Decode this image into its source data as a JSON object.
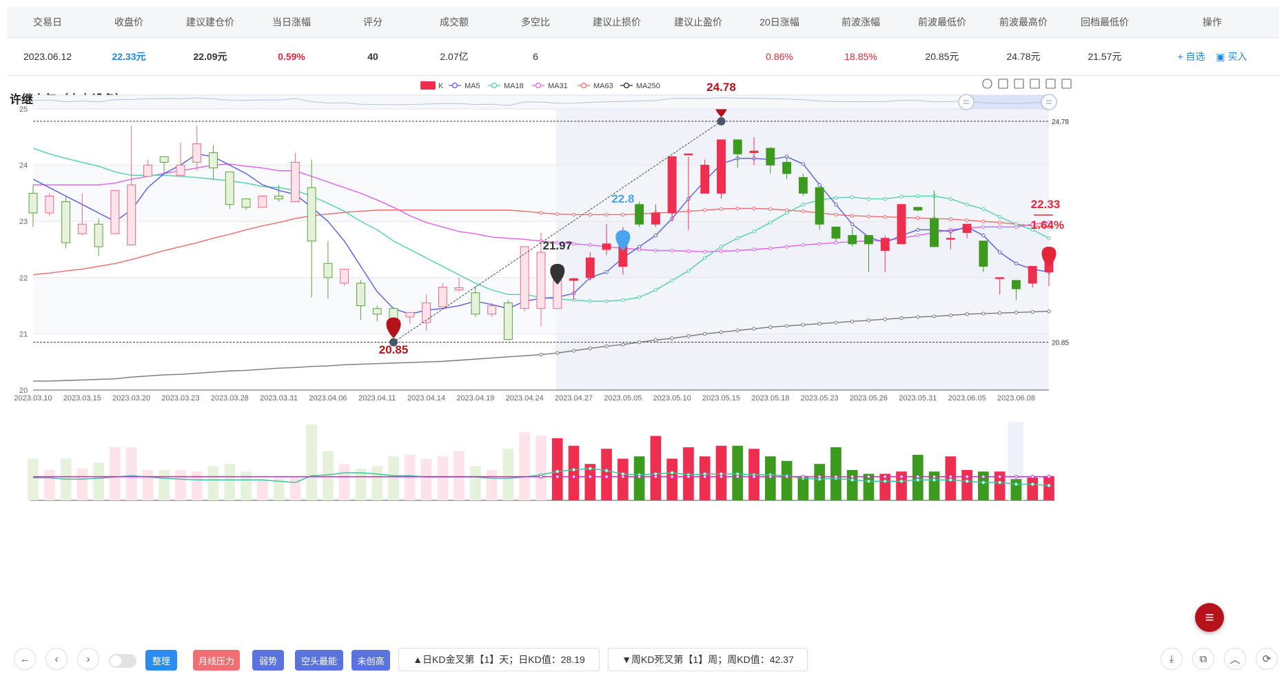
{
  "table": {
    "headers": [
      "交易日",
      "收盘价",
      "建议建仓价",
      "当日涨幅",
      "评分",
      "成交额",
      "多空比",
      "建议止损价",
      "建议止盈价",
      "20日涨幅",
      "前波涨幅",
      "前波最低价",
      "前波最高价",
      "回档最低价",
      "操作"
    ],
    "row": {
      "date": "2023.06.12",
      "close": "22.33元",
      "entry": "22.09元",
      "change": "0.59%",
      "score": "40",
      "amount": "2.07亿",
      "ratio": "6",
      "stop_loss": "",
      "take_profit": "",
      "chg20": "0.86%",
      "wave_chg": "18.85%",
      "wave_low": "20.85元",
      "wave_high": "24.78元",
      "pullback_low": "21.57元",
      "action_watch": "+ 自选",
      "action_buy": "买入"
    }
  },
  "stock_title": "许继电气（电力设备）",
  "legend": [
    "K",
    "MA5",
    "MA18",
    "MA31",
    "MA63",
    "MA250"
  ],
  "colors": {
    "up": "#ef2f4f",
    "down": "#3c9a1f",
    "ma5": "#4b4bdc",
    "ma18": "#35c6a0",
    "ma31": "#e05ae5",
    "ma63": "#e04c4c",
    "ma250": "#222222"
  },
  "chart_data": {
    "type": "candlestick",
    "x": [
      "2023.03.10",
      "2023.03.13",
      "2023.03.14",
      "2023.03.15",
      "2023.03.16",
      "2023.03.17",
      "2023.03.20",
      "2023.03.21",
      "2023.03.22",
      "2023.03.23",
      "2023.03.24",
      "2023.03.27",
      "2023.03.28",
      "2023.03.29",
      "2023.03.30",
      "2023.03.31",
      "2023.04.03",
      "2023.04.04",
      "2023.04.06",
      "2023.04.07",
      "2023.04.10",
      "2023.04.11",
      "2023.04.12",
      "2023.04.13",
      "2023.04.14",
      "2023.04.17",
      "2023.04.18",
      "2023.04.19",
      "2023.04.20",
      "2023.04.21",
      "2023.04.24",
      "2023.04.25",
      "2023.04.26",
      "2023.04.27",
      "2023.04.28",
      "2023.05.04",
      "2023.05.05",
      "2023.05.08",
      "2023.05.09",
      "2023.05.10",
      "2023.05.11",
      "2023.05.12",
      "2023.05.15",
      "2023.05.16",
      "2023.05.17",
      "2023.05.18",
      "2023.05.19",
      "2023.05.22",
      "2023.05.23",
      "2023.05.24",
      "2023.05.25",
      "2023.05.26",
      "2023.05.29",
      "2023.05.30",
      "2023.05.31",
      "2023.06.01",
      "2023.06.02",
      "2023.06.05",
      "2023.06.06",
      "2023.06.07",
      "2023.06.08",
      "2023.06.09",
      "2023.06.12"
    ],
    "ohlc": [
      [
        23.5,
        23.15,
        23.65,
        22.9
      ],
      [
        23.15,
        23.45,
        23.5,
        23.1
      ],
      [
        23.35,
        22.62,
        23.45,
        22.52
      ],
      [
        22.78,
        22.95,
        23.5,
        22.75
      ],
      [
        22.95,
        22.55,
        23.05,
        22.38
      ],
      [
        22.78,
        23.55,
        23.55,
        22.78
      ],
      [
        22.58,
        23.65,
        24.7,
        22.58
      ],
      [
        23.8,
        24.0,
        24.1,
        23.8
      ],
      [
        24.15,
        24.05,
        24.15,
        23.85
      ],
      [
        23.82,
        24.0,
        24.4,
        23.82
      ],
      [
        24.05,
        24.38,
        24.7,
        23.9
      ],
      [
        24.22,
        23.95,
        24.35,
        23.75
      ],
      [
        23.88,
        23.3,
        23.88,
        23.22
      ],
      [
        23.4,
        23.25,
        23.4,
        23.2
      ],
      [
        23.25,
        23.45,
        23.45,
        23.25
      ],
      [
        23.45,
        23.4,
        23.65,
        23.35
      ],
      [
        23.35,
        24.05,
        24.22,
        23.35
      ],
      [
        23.6,
        22.65,
        24.1,
        21.65
      ],
      [
        22.25,
        22.0,
        22.65,
        21.62
      ],
      [
        21.9,
        22.15,
        22.15,
        21.85
      ],
      [
        21.9,
        21.5,
        21.95,
        21.25
      ],
      [
        21.45,
        21.35,
        21.5,
        21.22
      ],
      [
        21.45,
        21.25,
        21.45,
        21.05
      ],
      [
        21.3,
        21.38,
        21.38,
        21.18
      ],
      [
        21.2,
        21.55,
        21.7,
        21.05
      ],
      [
        21.48,
        21.83,
        21.9,
        21.48
      ],
      [
        21.78,
        21.82,
        22.0,
        21.75
      ],
      [
        21.73,
        21.35,
        21.85,
        21.3
      ],
      [
        21.35,
        21.5,
        21.55,
        21.3
      ],
      [
        21.55,
        20.9,
        21.6,
        20.88
      ],
      [
        21.45,
        22.55,
        22.55,
        21.4
      ],
      [
        21.45,
        22.45,
        22.8,
        21.13
      ],
      [
        21.45,
        21.95,
        21.95,
        21.45
      ],
      [
        21.95,
        21.98,
        22.0,
        21.6
      ],
      [
        22.0,
        22.35,
        22.45,
        21.95
      ],
      [
        22.5,
        22.6,
        22.95,
        22.4
      ],
      [
        22.2,
        22.75,
        22.9,
        22.05
      ],
      [
        23.3,
        22.95,
        23.35,
        22.9
      ],
      [
        22.95,
        23.15,
        23.3,
        22.9
      ],
      [
        23.15,
        24.15,
        24.15,
        23.0
      ],
      [
        24.2,
        24.2,
        24.15,
        22.85
      ],
      [
        23.5,
        24.0,
        24.1,
        23.5
      ],
      [
        23.5,
        24.45,
        24.45,
        23.4
      ],
      [
        24.45,
        24.2,
        24.45,
        23.95
      ],
      [
        24.22,
        24.25,
        24.5,
        24.0
      ],
      [
        24.3,
        24.0,
        24.32,
        23.85
      ],
      [
        24.05,
        23.85,
        24.15,
        23.75
      ],
      [
        23.78,
        23.5,
        23.85,
        23.45
      ],
      [
        23.6,
        22.95,
        23.6,
        22.85
      ],
      [
        22.9,
        22.7,
        22.9,
        22.65
      ],
      [
        22.75,
        22.6,
        22.9,
        22.55
      ],
      [
        22.75,
        22.6,
        22.75,
        22.1
      ],
      [
        22.48,
        22.7,
        22.75,
        22.1
      ],
      [
        22.6,
        23.3,
        23.3,
        22.6
      ],
      [
        23.25,
        23.2,
        23.2,
        23.18
      ],
      [
        23.05,
        22.55,
        23.55,
        22.55
      ],
      [
        22.7,
        22.7,
        22.85,
        22.5
      ],
      [
        22.8,
        22.95,
        22.95,
        22.7
      ],
      [
        22.65,
        22.2,
        22.65,
        22.1
      ],
      [
        22.0,
        22.0,
        22.0,
        21.7
      ],
      [
        21.95,
        21.8,
        21.95,
        21.6
      ],
      [
        21.9,
        22.2,
        22.2,
        21.82
      ],
      [
        22.1,
        22.33,
        22.35,
        21.85
      ]
    ],
    "ma5": [
      23.75,
      23.6,
      23.45,
      23.3,
      23.15,
      23.0,
      23.2,
      23.6,
      23.85,
      24.0,
      24.2,
      24.15,
      24.0,
      23.85,
      23.65,
      23.55,
      23.48,
      23.25,
      23.0,
      22.65,
      22.2,
      21.75,
      21.45,
      21.35,
      21.42,
      21.45,
      21.5,
      21.58,
      21.52,
      21.45,
      21.58,
      21.63,
      21.65,
      21.72,
      22.0,
      22.1,
      22.35,
      22.55,
      22.75,
      23.05,
      23.4,
      23.72,
      24.02,
      24.12,
      24.12,
      24.1,
      24.15,
      24.02,
      23.65,
      23.3,
      22.95,
      22.72,
      22.62,
      22.75,
      22.85,
      22.85,
      22.82,
      22.9,
      22.75,
      22.45,
      22.25,
      22.15,
      22.1
    ],
    "ma18": [
      24.3,
      24.2,
      24.12,
      24.05,
      23.98,
      23.88,
      23.82,
      23.82,
      23.82,
      23.8,
      23.78,
      23.75,
      23.72,
      23.68,
      23.62,
      23.6,
      23.55,
      23.45,
      23.32,
      23.18,
      23.0,
      22.85,
      22.65,
      22.5,
      22.35,
      22.2,
      22.05,
      21.9,
      21.78,
      21.7,
      21.7,
      21.65,
      21.62,
      21.6,
      21.58,
      21.58,
      21.6,
      21.65,
      21.78,
      21.95,
      22.12,
      22.35,
      22.55,
      22.7,
      22.82,
      22.98,
      23.15,
      23.3,
      23.38,
      23.42,
      23.43,
      23.4,
      23.4,
      23.44,
      23.45,
      23.45,
      23.4,
      23.3,
      23.22,
      23.08,
      22.95,
      22.85,
      22.7
    ],
    "ma31": [
      23.65,
      23.65,
      23.65,
      23.65,
      23.65,
      23.68,
      23.75,
      23.8,
      23.85,
      23.9,
      23.95,
      24.0,
      24.02,
      23.98,
      23.95,
      23.9,
      23.9,
      23.8,
      23.7,
      23.6,
      23.5,
      23.38,
      23.25,
      23.1,
      22.98,
      22.9,
      22.82,
      22.78,
      22.72,
      22.7,
      22.68,
      22.65,
      22.62,
      22.6,
      22.58,
      22.55,
      22.52,
      22.5,
      22.48,
      22.48,
      22.47,
      22.46,
      22.47,
      22.48,
      22.5,
      22.52,
      22.55,
      22.58,
      22.6,
      22.62,
      22.64,
      22.65,
      22.66,
      22.7,
      22.75,
      22.8,
      22.85,
      22.88,
      22.9,
      22.9,
      22.9,
      22.95,
      22.98
    ],
    "ma63": [
      22.05,
      22.08,
      22.12,
      22.15,
      22.2,
      22.25,
      22.32,
      22.4,
      22.48,
      22.55,
      22.62,
      22.7,
      22.77,
      22.85,
      22.92,
      22.98,
      23.05,
      23.1,
      23.13,
      23.16,
      23.18,
      23.2,
      23.2,
      23.2,
      23.2,
      23.2,
      23.2,
      23.2,
      23.2,
      23.2,
      23.18,
      23.15,
      23.13,
      23.12,
      23.12,
      23.12,
      23.12,
      23.13,
      23.15,
      23.16,
      23.18,
      23.2,
      23.22,
      23.23,
      23.23,
      23.22,
      23.2,
      23.18,
      23.15,
      23.12,
      23.1,
      23.09,
      23.08,
      23.07,
      23.06,
      23.05,
      23.04,
      23.02,
      23.0,
      22.98,
      22.95,
      22.92,
      22.9
    ],
    "ma250": [
      20.16,
      20.16,
      20.17,
      20.18,
      20.19,
      20.2,
      20.23,
      20.25,
      20.27,
      20.28,
      20.3,
      20.32,
      20.34,
      20.35,
      20.37,
      20.39,
      20.4,
      20.42,
      20.43,
      20.45,
      20.46,
      20.47,
      20.48,
      20.49,
      20.5,
      20.51,
      20.53,
      20.55,
      20.57,
      20.59,
      20.61,
      20.63,
      20.66,
      20.7,
      20.74,
      20.78,
      20.81,
      20.85,
      20.89,
      20.92,
      20.96,
      21.0,
      21.03,
      21.06,
      21.09,
      21.12,
      21.14,
      21.16,
      21.18,
      21.2,
      21.22,
      21.24,
      21.26,
      21.28,
      21.3,
      21.31,
      21.33,
      21.35,
      21.36,
      21.37,
      21.38,
      21.39,
      21.4
    ],
    "volume": [
      0.55,
      0.4,
      0.55,
      0.42,
      0.5,
      0.7,
      0.7,
      0.4,
      0.4,
      0.4,
      0.38,
      0.45,
      0.48,
      0.38,
      0.28,
      0.3,
      0.3,
      1.0,
      0.65,
      0.48,
      0.42,
      0.45,
      0.58,
      0.6,
      0.55,
      0.58,
      0.65,
      0.45,
      0.4,
      0.68,
      0.9,
      0.85,
      0.82,
      0.72,
      0.48,
      0.68,
      0.55,
      0.58,
      0.85,
      0.55,
      0.7,
      0.58,
      0.72,
      0.72,
      0.68,
      0.58,
      0.52,
      0.32,
      0.48,
      0.7,
      0.4,
      0.35,
      0.35,
      0.38,
      0.6,
      0.38,
      0.58,
      0.4,
      0.38,
      0.38,
      0.28,
      0.3,
      0.32
    ],
    "volume_ma_cyan": [
      0.53,
      0.53,
      0.5,
      0.5,
      0.52,
      0.55,
      0.58,
      0.55,
      0.52,
      0.5,
      0.48,
      0.48,
      0.48,
      0.48,
      0.48,
      0.45,
      0.42,
      0.58,
      0.6,
      0.65,
      0.65,
      0.62,
      0.58,
      0.58,
      0.55,
      0.55,
      0.55,
      0.55,
      0.52,
      0.52,
      0.55,
      0.6,
      0.68,
      0.72,
      0.75,
      0.7,
      0.62,
      0.6,
      0.62,
      0.65,
      0.6,
      0.62,
      0.62,
      0.62,
      0.6,
      0.6,
      0.58,
      0.52,
      0.5,
      0.52,
      0.48,
      0.45,
      0.45,
      0.45,
      0.48,
      0.48,
      0.48,
      0.45,
      0.42,
      0.42,
      0.38,
      0.38,
      0.35
    ],
    "volume_ma_magenta": 0.6,
    "ylim": [
      20,
      25
    ],
    "y_ticks": [
      "20",
      "21",
      "22",
      "23",
      "24",
      "25"
    ],
    "x_ticks": [
      "2023.03.10",
      "2023.03.15",
      "2023.03.20",
      "2023.03.23",
      "2023.03.28",
      "2023.03.31",
      "2023.04.06",
      "2023.04.11",
      "2023.04.14",
      "2023.04.19",
      "2023.04.24",
      "2023.04.27",
      "2023.05.05",
      "2023.05.10",
      "2023.05.15",
      "2023.05.18",
      "2023.05.23",
      "2023.05.26",
      "2023.05.31",
      "2023.06.05",
      "2023.06.08"
    ],
    "ref_lines": [
      "24.78",
      "20.85"
    ],
    "markers": {
      "high": "24.78",
      "low": "20.85",
      "blue": "22.8",
      "black": "21.97",
      "last_price": "22.33",
      "last_pct": "1.64%"
    }
  },
  "bottom": {
    "buttons": [
      "整理",
      "月线压力",
      "弱势",
      "空头最能",
      "未创高"
    ],
    "button_colors": [
      "#2a8cf0",
      "#ef6f74",
      "#5b73dd",
      "#5b73dd",
      "#5b73dd"
    ],
    "info1": "▲日KD金叉第【1】天；日KD值：28.19",
    "info2": "▼周KD死叉第【1】周；周KD值：42.37"
  }
}
